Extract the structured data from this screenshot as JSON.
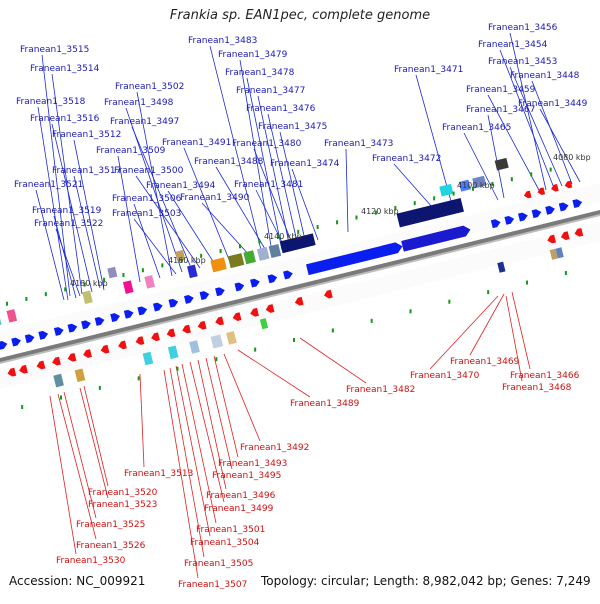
{
  "title": "Frankia sp. EAN1pec, complete genome",
  "footer": {
    "accession": "Accession: NC_009921",
    "topology": "Topology: circular; Length: 8,982,042 bp; Genes: 7,249"
  },
  "colors": {
    "forward_gene": "#0a1ef0",
    "reverse_gene": "#f01010",
    "forward_label": "#1a1ab0",
    "reverse_label": "#cc1010",
    "backbone": "#7a7a7a",
    "tick_marker": "#119911"
  },
  "scale_labels": [
    "4080 kbp",
    "4100 kbp",
    "4120 kbp",
    "4140 kbp",
    "4160 kbp",
    "4180 kbp"
  ],
  "forward_genes": [
    {
      "label": "Franean1_3515"
    },
    {
      "label": "Franean1_3514"
    },
    {
      "label": "Franean1_3518"
    },
    {
      "label": "Franean1_3516"
    },
    {
      "label": "Franean1_3512"
    },
    {
      "label": "Franean1_3509"
    },
    {
      "label": "Franean1_3517"
    },
    {
      "label": "Franean1_3521"
    },
    {
      "label": "Franean1_3506"
    },
    {
      "label": "Franean1_3519"
    },
    {
      "label": "Franean1_3503"
    },
    {
      "label": "Franean1_3522"
    },
    {
      "label": "Franean1_3502"
    },
    {
      "label": "Franean1_3498"
    },
    {
      "label": "Franean1_3497"
    },
    {
      "label": "Franean1_3491"
    },
    {
      "label": "Franean1_3500"
    },
    {
      "label": "Franean1_3494"
    },
    {
      "label": "Franean1_3490"
    },
    {
      "label": "Franean1_3483"
    },
    {
      "label": "Franean1_3479"
    },
    {
      "label": "Franean1_3478"
    },
    {
      "label": "Franean1_3477"
    },
    {
      "label": "Franean1_3476"
    },
    {
      "label": "Franean1_3475"
    },
    {
      "label": "Franean1_3480"
    },
    {
      "label": "Franean1_3488"
    },
    {
      "label": "Franean1_3474"
    },
    {
      "label": "Franean1_3481"
    },
    {
      "label": "Franean1_3473"
    },
    {
      "label": "Franean1_3471"
    },
    {
      "label": "Franean1_3472"
    },
    {
      "label": "Franean1_3467"
    },
    {
      "label": "Franean1_3465"
    },
    {
      "label": "Franean1_3456"
    },
    {
      "label": "Franean1_3454"
    },
    {
      "label": "Franean1_3453"
    },
    {
      "label": "Franean1_3448"
    },
    {
      "label": "Franean1_3459"
    },
    {
      "label": "Franean1_3449"
    }
  ],
  "reverse_genes": [
    {
      "label": "Franean1_3469"
    },
    {
      "label": "Franean1_3470"
    },
    {
      "label": "Franean1_3466"
    },
    {
      "label": "Franean1_3468"
    },
    {
      "label": "Franean1_3482"
    },
    {
      "label": "Franean1_3489"
    },
    {
      "label": "Franean1_3492"
    },
    {
      "label": "Franean1_3493"
    },
    {
      "label": "Franean1_3495"
    },
    {
      "label": "Franean1_3496"
    },
    {
      "label": "Franean1_3499"
    },
    {
      "label": "Franean1_3501"
    },
    {
      "label": "Franean1_3504"
    },
    {
      "label": "Franean1_3505"
    },
    {
      "label": "Franean1_3507"
    },
    {
      "label": "Franean1_3513"
    },
    {
      "label": "Franean1_3520"
    },
    {
      "label": "Franean1_3523"
    },
    {
      "label": "Franean1_3525"
    },
    {
      "label": "Franean1_3526"
    },
    {
      "label": "Franean1_3530"
    }
  ]
}
